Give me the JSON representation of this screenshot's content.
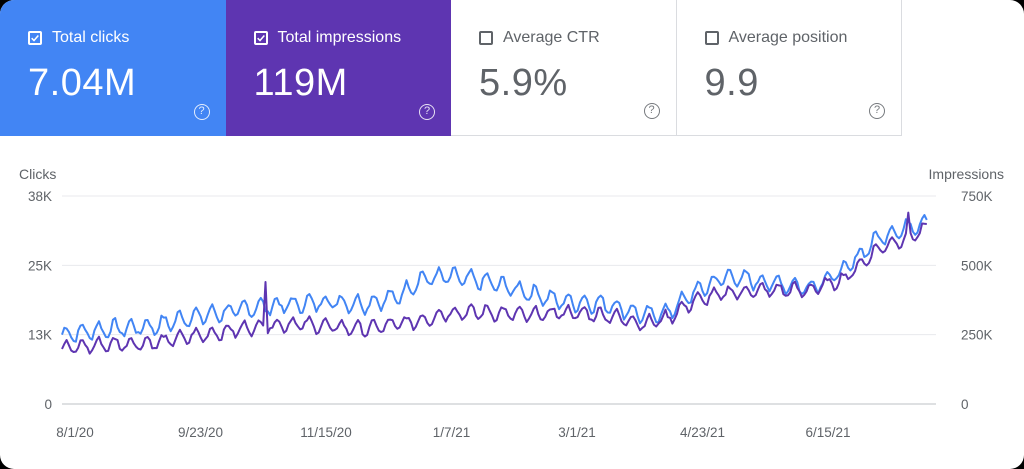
{
  "cards": [
    {
      "label": "Total clicks",
      "value": "7.04M",
      "checked": true,
      "color": "#4285f4"
    },
    {
      "label": "Total impressions",
      "value": "119M",
      "checked": true,
      "color": "#5e35b1"
    },
    {
      "label": "Average CTR",
      "value": "5.9%",
      "checked": false,
      "color": "#ffffff"
    },
    {
      "label": "Average position",
      "value": "9.9",
      "checked": false,
      "color": "#ffffff"
    }
  ],
  "help_glyph": "?",
  "chart_data": {
    "type": "line",
    "title": "",
    "left_axis_title": "Clicks",
    "right_axis_title": "Impressions",
    "x_tick_labels": [
      "8/1/20",
      "9/23/20",
      "11/15/20",
      "1/7/21",
      "3/1/21",
      "4/23/21",
      "6/15/21"
    ],
    "x_range": [
      "2020-08-01",
      "2021-08-14"
    ],
    "left_ticks": {
      "values": [
        0,
        12500,
        25000,
        37500
      ],
      "labels": [
        "0",
        "13K",
        "25K",
        "38K"
      ]
    },
    "right_ticks": {
      "values": [
        0,
        250000,
        500000,
        750000
      ],
      "labels": [
        "0",
        "250K",
        "500K",
        "750K"
      ]
    },
    "ylim_left": [
      0,
      37500
    ],
    "ylim_right": [
      0,
      750000
    ],
    "grid": true,
    "series": [
      {
        "name": "Clicks",
        "axis": "left",
        "color": "#4285f4",
        "keypoints": [
          [
            "2020-08-01",
            12500
          ],
          [
            "2020-08-20",
            13500
          ],
          [
            "2020-09-10",
            14000
          ],
          [
            "2020-09-23",
            15500
          ],
          [
            "2020-10-10",
            16500
          ],
          [
            "2020-10-25",
            17500
          ],
          [
            "2020-11-10",
            18000
          ],
          [
            "2020-11-25",
            18500
          ],
          [
            "2020-12-10",
            18000
          ],
          [
            "2020-12-25",
            19500
          ],
          [
            "2021-01-03",
            22500
          ],
          [
            "2021-01-15",
            23000
          ],
          [
            "2021-02-01",
            22000
          ],
          [
            "2021-02-20",
            20000
          ],
          [
            "2021-03-05",
            18500
          ],
          [
            "2021-03-25",
            18000
          ],
          [
            "2021-04-10",
            16000
          ],
          [
            "2021-04-20",
            16500
          ],
          [
            "2021-05-01",
            20000
          ],
          [
            "2021-05-15",
            23000
          ],
          [
            "2021-06-01",
            22000
          ],
          [
            "2021-06-20",
            21000
          ],
          [
            "2021-07-05",
            24000
          ],
          [
            "2021-07-20",
            30000
          ],
          [
            "2021-08-10",
            33000
          ]
        ],
        "noise_amplitude": 1800,
        "noise_period_days": 7
      },
      {
        "name": "Impressions",
        "axis": "right",
        "color": "#5e35b1",
        "keypoints": [
          [
            "2020-08-01",
            200000
          ],
          [
            "2020-08-20",
            215000
          ],
          [
            "2020-09-10",
            220000
          ],
          [
            "2020-09-23",
            240000
          ],
          [
            "2020-10-10",
            260000
          ],
          [
            "2020-10-25",
            280000
          ],
          [
            "2020-11-10",
            290000
          ],
          [
            "2020-11-25",
            280000
          ],
          [
            "2020-12-10",
            270000
          ],
          [
            "2020-12-25",
            290000
          ],
          [
            "2021-01-03",
            300000
          ],
          [
            "2021-01-15",
            330000
          ],
          [
            "2021-02-01",
            330000
          ],
          [
            "2021-02-20",
            320000
          ],
          [
            "2021-03-05",
            330000
          ],
          [
            "2021-03-25",
            320000
          ],
          [
            "2021-04-10",
            290000
          ],
          [
            "2021-04-20",
            310000
          ],
          [
            "2021-05-01",
            370000
          ],
          [
            "2021-05-15",
            400000
          ],
          [
            "2021-06-01",
            410000
          ],
          [
            "2021-06-20",
            410000
          ],
          [
            "2021-07-05",
            450000
          ],
          [
            "2021-07-20",
            560000
          ],
          [
            "2021-08-10",
            630000
          ]
        ],
        "noise_amplitude": 30000,
        "noise_period_days": 7,
        "spikes": [
          [
            "2020-10-28",
            440000
          ],
          [
            "2021-08-02",
            690000
          ]
        ]
      }
    ]
  }
}
